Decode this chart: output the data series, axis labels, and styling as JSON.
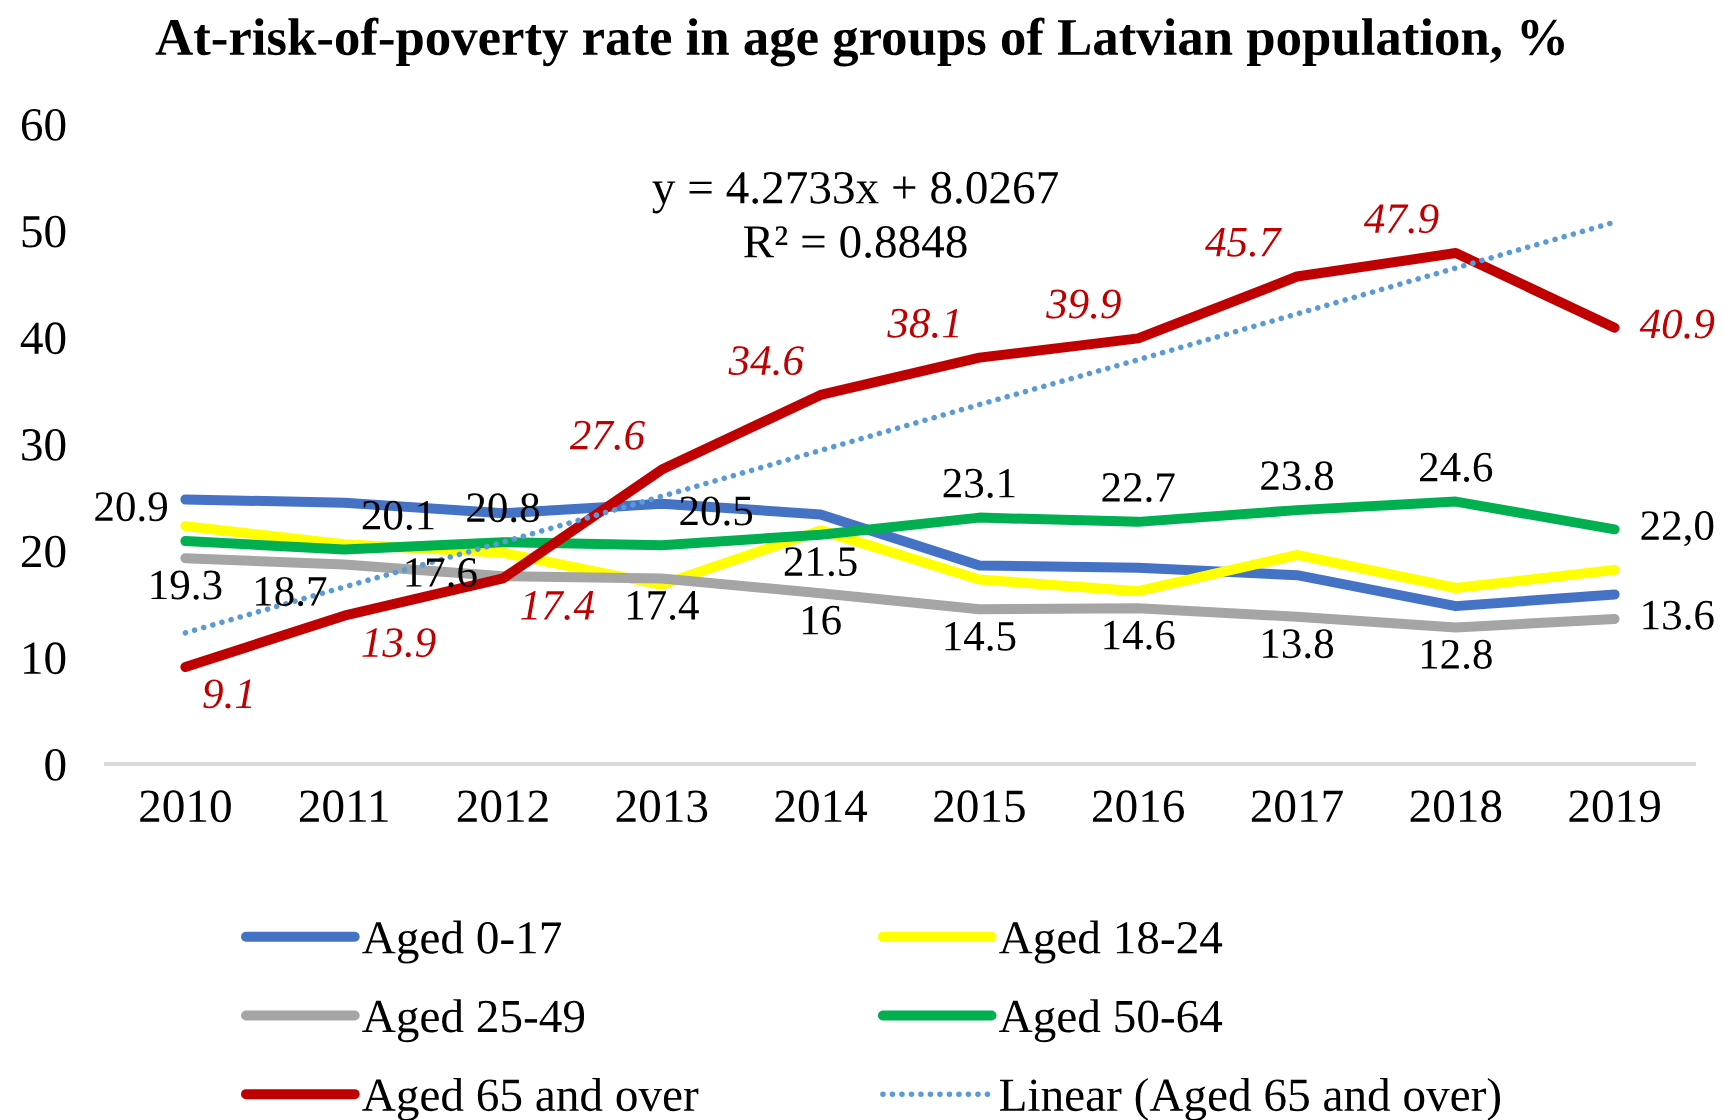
{
  "chart_data": {
    "type": "line",
    "title": "At-risk-of-poverty rate in age groups of Latvian population, %",
    "categories": [
      "2010",
      "2011",
      "2012",
      "2013",
      "2014",
      "2015",
      "2016",
      "2017",
      "2018",
      "2019"
    ],
    "ylim": [
      0,
      60
    ],
    "yticks": [
      0,
      10,
      20,
      30,
      40,
      50,
      60
    ],
    "grid": false,
    "legend": "bottom",
    "annotations": [
      "y = 4.2733x + 8.0267",
      "R² = 0.8848"
    ],
    "series": [
      {
        "name": "Aged 0-17",
        "color": "#4472c4",
        "values": [
          24.8,
          24.5,
          23.5,
          24.4,
          23.4,
          18.6,
          18.4,
          17.7,
          14.8,
          15.9
        ]
      },
      {
        "name": "Aged 18-24",
        "color": "#ffff00",
        "values": [
          22.3,
          20.6,
          19.8,
          16.8,
          21.9,
          17.3,
          16.2,
          19.6,
          16.5,
          18.2
        ]
      },
      {
        "name": "Aged 25-49",
        "color": "#a5a5a5",
        "values": [
          19.3,
          18.7,
          17.6,
          17.4,
          16,
          14.5,
          14.6,
          13.8,
          12.8,
          13.6
        ],
        "value_labels": [
          "19.3",
          "18.7",
          "17.6",
          "17.4",
          "16",
          "14.5",
          "14.6",
          "13.8",
          "12.8",
          "13.6"
        ]
      },
      {
        "name": "Aged 50-64",
        "color": "#00b050",
        "values": [
          20.9,
          20.1,
          20.8,
          20.5,
          21.5,
          23.1,
          22.7,
          23.8,
          24.6,
          22.0
        ],
        "value_labels": [
          "20.9",
          "20.1",
          "20.8",
          "20.5",
          "21.5",
          "23.1",
          "22.7",
          "23.8",
          "24.6",
          "22,0"
        ]
      },
      {
        "name": "Aged 65 and over",
        "color": "#c00000",
        "values": [
          9.1,
          13.9,
          17.4,
          27.6,
          34.6,
          38.1,
          39.9,
          45.7,
          47.9,
          40.9
        ],
        "value_labels": [
          "9.1",
          "13.9",
          "17.4",
          "27.6",
          "34.6",
          "38.1",
          "39.9",
          "45.7",
          "47.9",
          "40.9"
        ]
      },
      {
        "name": "Linear (Aged 65 and over)",
        "type": "line",
        "color": "#5b9bd5",
        "line_style": "dotted",
        "values": [
          12.3,
          16.6,
          20.8,
          25.1,
          29.4,
          33.7,
          37.9,
          42.2,
          46.5,
          50.8
        ]
      }
    ]
  }
}
